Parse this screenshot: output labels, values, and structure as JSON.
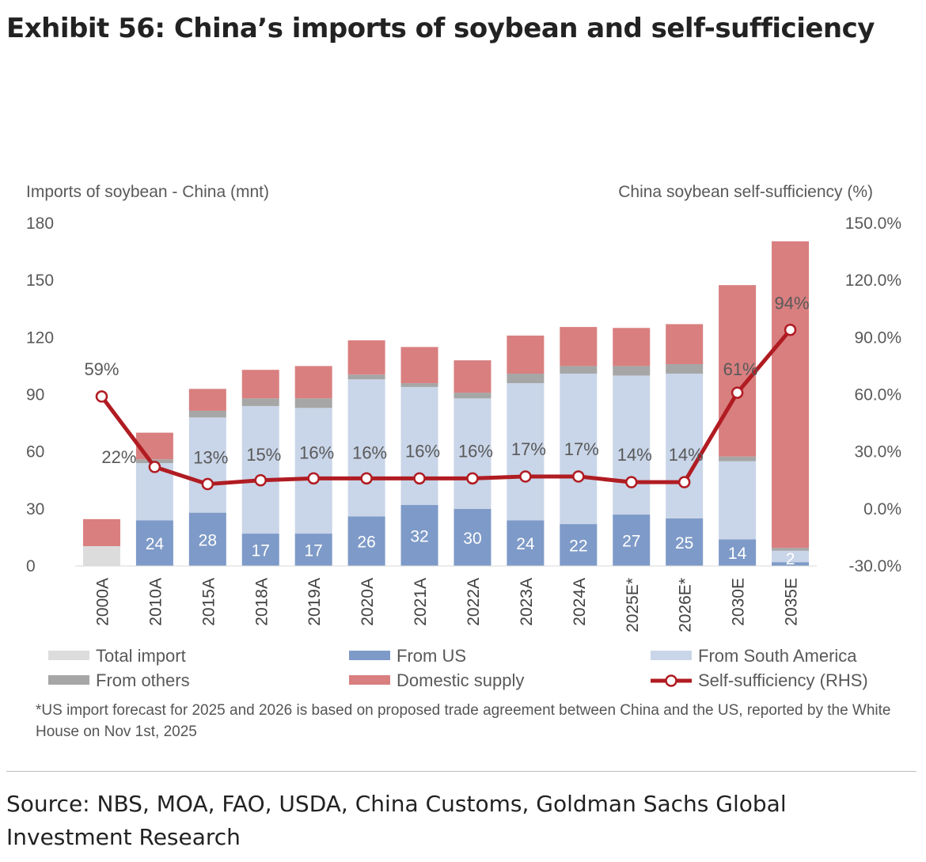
{
  "header": {
    "title": "Exhibit 56: China’s imports of soybean and self-sufficiency"
  },
  "chart_data": {
    "type": "stacked bar with line (dual axis)",
    "left_axis_title": "Imports of soybean - China (mnt)",
    "right_axis_title": "China soybean self-sufficiency (%)",
    "ylim_left": [
      0,
      180
    ],
    "ylim_right": [
      -30,
      150
    ],
    "left_ticks": [
      "180",
      "150",
      "120",
      "90",
      "60",
      "30",
      "0"
    ],
    "right_ticks": [
      "150.0%",
      "120.0%",
      "90.0%",
      "60.0%",
      "30.0%",
      "0.0%",
      "-30.0%"
    ],
    "categories": [
      "2000A",
      "2010A",
      "2015A",
      "2018A",
      "2019A",
      "2020A",
      "2021A",
      "2022A",
      "2023A",
      "2024A",
      "2025E*",
      "2026E*",
      "2030E",
      "2035E"
    ],
    "series": [
      {
        "name": "Total import",
        "color": "#dcdcdc",
        "values": [
          10.4,
          null,
          null,
          null,
          null,
          null,
          null,
          null,
          null,
          null,
          null,
          null,
          null,
          null
        ]
      },
      {
        "name": "From US",
        "color": "#7e9ac8",
        "values": [
          null,
          24,
          28,
          17,
          17,
          26,
          32,
          30,
          24,
          22,
          27,
          25,
          14,
          2
        ]
      },
      {
        "name": "From South America",
        "color": "#c9d5e8",
        "values": [
          null,
          30,
          50,
          67,
          66,
          72,
          62,
          58,
          72,
          79,
          73,
          76,
          41,
          6
        ]
      },
      {
        "name": "From others",
        "color": "#a6a6a6",
        "values": [
          null,
          2,
          3.5,
          4,
          5,
          2.5,
          2,
          3,
          5,
          4,
          5,
          5,
          2.5,
          1.5
        ]
      },
      {
        "name": "Domestic supply",
        "color": "#d97f80",
        "values": [
          14.2,
          14,
          11.5,
          15,
          17,
          18,
          19,
          17,
          20,
          20.5,
          20,
          21,
          90,
          161
        ]
      },
      {
        "name": "Self-sufficiency (RHS)",
        "color": "#b01c22",
        "type": "line",
        "values": [
          59,
          22,
          13,
          15,
          16,
          16,
          16,
          16,
          17,
          17,
          14,
          14,
          61,
          94
        ]
      }
    ],
    "bar_labels_us": [
      "",
      "24",
      "28",
      "17",
      "17",
      "26",
      "32",
      "30",
      "24",
      "22",
      "27",
      "25",
      "14",
      "2"
    ],
    "line_labels": [
      "59%",
      "22%",
      "13%",
      "15%",
      "16%",
      "16%",
      "16%",
      "16%",
      "17%",
      "17%",
      "14%",
      "14%",
      "61%",
      "94%"
    ],
    "legend": [
      "Total import",
      "From US",
      "From South America",
      "From others",
      "Domestic supply",
      "Self-sufficiency (RHS)"
    ]
  },
  "footnote": "*US import forecast for 2025 and 2026 is based on proposed trade agreement between China and the US, reported by the White House on Nov 1st, 2025",
  "source": "Source: NBS, MOA, FAO, USDA, China Customs, Goldman Sachs Global Investment Research"
}
